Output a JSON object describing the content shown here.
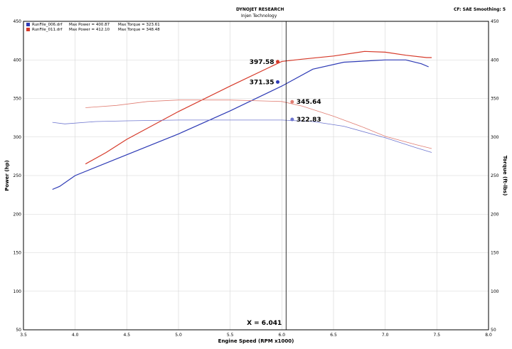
{
  "header": {
    "company": "DYNOJET RESEARCH",
    "sub": "Injen Technology",
    "correction": "CF: SAE  Smoothing: 5"
  },
  "legend": [
    {
      "file": "RunFile_006.drf",
      "power": "Max Power = 400.87",
      "torque": "Max Torque = 323.61",
      "color": "#2d3ab5"
    },
    {
      "file": "RunFile_011.drf",
      "power": "Max Power = 412.10",
      "torque": "Max Torque = 348.48",
      "color": "#d63a2a"
    }
  ],
  "chart_data": {
    "type": "line",
    "xlabel": "Engine Speed (RPM x1000)",
    "ylabel": "Power (hp)",
    "y2label": "Torque (ft-lbs)",
    "xlim": [
      3.5,
      8.0
    ],
    "ylim": [
      50,
      450
    ],
    "y2lim": [
      50,
      450
    ],
    "x_ticks": [
      "3.5",
      "4.0",
      "4.5",
      "5.0",
      "5.5",
      "6.0",
      "6.5",
      "7.0",
      "7.5",
      "8.0"
    ],
    "y_ticks": [
      "50",
      "100",
      "150",
      "200",
      "250",
      "300",
      "350",
      "400",
      "450"
    ],
    "grid": true,
    "cursor": {
      "x": 6.041,
      "label": "X = 6.041"
    },
    "series": [
      {
        "name": "RunFile_006.drf",
        "kind": "power",
        "color": "#2d3ab5",
        "x": [
          3.78,
          3.85,
          4.0,
          4.5,
          5.0,
          5.5,
          6.0,
          6.3,
          6.6,
          7.0,
          7.2,
          7.35,
          7.42
        ],
        "y": [
          232,
          236,
          250,
          277,
          304,
          334,
          366,
          388,
          397,
          400,
          400,
          395,
          391
        ]
      },
      {
        "name": "RunFile_011.drf",
        "kind": "power",
        "color": "#d63a2a",
        "x": [
          4.1,
          4.3,
          4.5,
          5.0,
          5.5,
          6.0,
          6.2,
          6.5,
          6.8,
          7.0,
          7.2,
          7.4,
          7.45
        ],
        "y": [
          265,
          280,
          297,
          333,
          366,
          398,
          401,
          405,
          411,
          410,
          406,
          403,
          403
        ]
      },
      {
        "name": "RunFile_006.drf",
        "kind": "torque",
        "color": "#6e76cf",
        "x": [
          3.78,
          3.9,
          4.2,
          4.5,
          5.0,
          5.5,
          6.0,
          6.3,
          6.6,
          7.0,
          7.3,
          7.45
        ],
        "y": [
          319,
          317,
          320,
          321,
          322,
          322,
          322,
          320,
          314,
          299,
          286,
          280
        ]
      },
      {
        "name": "RunFile_011.drf",
        "kind": "torque",
        "color": "#e07d72",
        "x": [
          4.1,
          4.4,
          4.7,
          5.0,
          5.5,
          6.0,
          6.2,
          6.5,
          6.8,
          7.0,
          7.3,
          7.45
        ],
        "y": [
          338,
          341,
          346,
          348,
          348,
          346,
          340,
          327,
          312,
          301,
          290,
          285
        ]
      }
    ],
    "markers": [
      {
        "x": 5.96,
        "y": 397.58,
        "label": "397.58",
        "color": "#d63a2a",
        "side": "left"
      },
      {
        "x": 5.96,
        "y": 371.35,
        "label": "371.35",
        "color": "#2d3ab5",
        "side": "left"
      },
      {
        "x": 6.1,
        "y": 345.64,
        "label": "345.64",
        "color": "#e07d72",
        "side": "right"
      },
      {
        "x": 6.1,
        "y": 322.83,
        "label": "322.83",
        "color": "#6e76cf",
        "side": "right"
      }
    ]
  }
}
